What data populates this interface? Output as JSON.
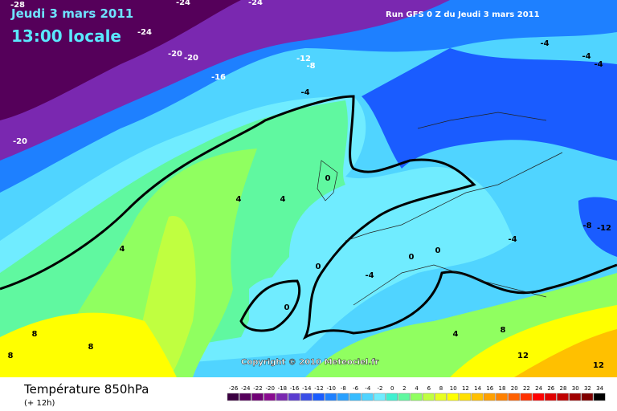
{
  "header": {
    "date": "Jeudi 3 mars 2011",
    "time": "13:00 locale",
    "run": "Run GFS 0 Z du Jeudi 3 mars 2011"
  },
  "copyright": "Copyright © 2010 Meteociel.fr",
  "footer": {
    "title": "Température 850hPa",
    "lead": "(+ 12h)"
  },
  "contour_labels": [
    -28,
    -24,
    -24,
    -24,
    -20,
    -20,
    -20,
    -16,
    -12,
    -8,
    -4,
    -4,
    -4,
    -4,
    -8,
    -12,
    -4,
    -4,
    0,
    4,
    4,
    4,
    0,
    0,
    0,
    0,
    8,
    8,
    8,
    8,
    4,
    12,
    12
  ],
  "legend": {
    "items": [
      {
        "value": -26,
        "color": "#3a0040"
      },
      {
        "value": -24,
        "color": "#55005a"
      },
      {
        "value": -22,
        "color": "#700075"
      },
      {
        "value": -20,
        "color": "#8a0a90"
      },
      {
        "value": -18,
        "color": "#7a28b0"
      },
      {
        "value": -16,
        "color": "#5a3cd0"
      },
      {
        "value": -14,
        "color": "#3a4ee8"
      },
      {
        "value": -12,
        "color": "#1a5cff"
      },
      {
        "value": -10,
        "color": "#1e80ff"
      },
      {
        "value": -8,
        "color": "#28a0ff"
      },
      {
        "value": -6,
        "color": "#36bcff"
      },
      {
        "value": -4,
        "color": "#50d4ff"
      },
      {
        "value": -2,
        "color": "#70ecff"
      },
      {
        "value": 0,
        "color": "#40f0d0"
      },
      {
        "value": 2,
        "color": "#60f8a0"
      },
      {
        "value": 4,
        "color": "#90ff60"
      },
      {
        "value": 6,
        "color": "#c0ff40"
      },
      {
        "value": 8,
        "color": "#e8ff20"
      },
      {
        "value": 10,
        "color": "#ffff00"
      },
      {
        "value": 12,
        "color": "#ffe000"
      },
      {
        "value": 14,
        "color": "#ffc000"
      },
      {
        "value": 16,
        "color": "#ffa000"
      },
      {
        "value": 18,
        "color": "#ff8000"
      },
      {
        "value": 20,
        "color": "#ff6000"
      },
      {
        "value": 22,
        "color": "#ff3000"
      },
      {
        "value": 24,
        "color": "#ff0000"
      },
      {
        "value": 26,
        "color": "#e00000"
      },
      {
        "value": 28,
        "color": "#c00000"
      },
      {
        "value": 30,
        "color": "#a00000"
      },
      {
        "value": 32,
        "color": "#800000"
      },
      {
        "value": 34,
        "color": "#000000"
      }
    ]
  }
}
